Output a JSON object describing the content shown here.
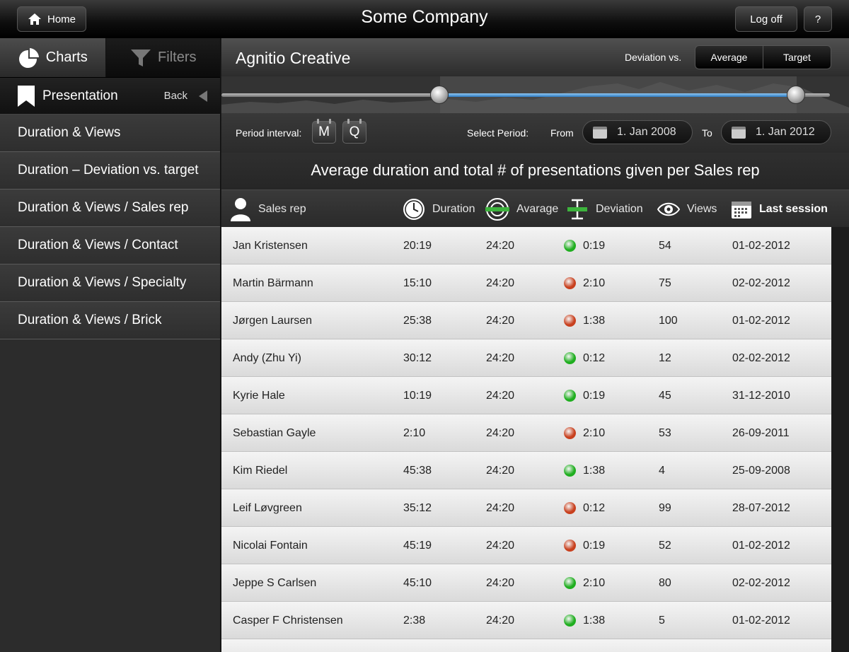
{
  "header": {
    "title": "Some Company",
    "home_label": "Home",
    "logoff_label": "Log off",
    "help_label": "?"
  },
  "sidebar": {
    "tabs": [
      {
        "label": "Charts"
      },
      {
        "label": "Filters"
      }
    ],
    "presentation_label": "Presentation",
    "back_label": "Back",
    "items": [
      {
        "label": "Duration & Views"
      },
      {
        "label": "Duration – Deviation vs. target"
      },
      {
        "label": "Duration & Views / Sales rep"
      },
      {
        "label": "Duration & Views / Contact"
      },
      {
        "label": "Duration & Views / Specialty"
      },
      {
        "label": "Duration & Views / Brick"
      }
    ]
  },
  "main": {
    "title": "Agnitio Creative",
    "deviation_label": "Deviation vs.",
    "deviation_options": [
      "Average",
      "Target"
    ],
    "period_interval_label": "Period interval:",
    "interval_options": [
      "M",
      "Q"
    ],
    "select_period_label": "Select Period:",
    "from_label": "From",
    "from_value": "1. Jan 2008",
    "to_label": "To",
    "to_value": "1. Jan 2012",
    "subtitle": "Average duration and total # of presentations given per Sales rep",
    "columns": {
      "sales_rep": "Sales rep",
      "duration": "Duration",
      "average": "Avarage",
      "deviation": "Deviation",
      "views": "Views",
      "last_session": "Last session"
    },
    "status_colors": {
      "good": "#1fae1f",
      "bad": "#c8401e"
    },
    "rows": [
      {
        "name": "Jan Kristensen",
        "duration": "20:19",
        "average": "24:20",
        "status": "good",
        "deviation": "0:19",
        "views": "54",
        "last": "01-02-2012"
      },
      {
        "name": "Martin Bärmann",
        "duration": "15:10",
        "average": "24:20",
        "status": "bad",
        "deviation": "2:10",
        "views": "75",
        "last": "02-02-2012"
      },
      {
        "name": "Jørgen Laursen",
        "duration": "25:38",
        "average": "24:20",
        "status": "bad",
        "deviation": "1:38",
        "views": "100",
        "last": "01-02-2012"
      },
      {
        "name": "Andy (Zhu Yi)",
        "duration": "30:12",
        "average": "24:20",
        "status": "good",
        "deviation": "0:12",
        "views": "12",
        "last": "02-02-2012"
      },
      {
        "name": "Kyrie Hale",
        "duration": "10:19",
        "average": "24:20",
        "status": "good",
        "deviation": "0:19",
        "views": "45",
        "last": "31-12-2010"
      },
      {
        "name": "Sebastian Gayle",
        "duration": "2:10",
        "average": "24:20",
        "status": "bad",
        "deviation": "2:10",
        "views": "53",
        "last": "26-09-2011"
      },
      {
        "name": "Kim Riedel",
        "duration": "45:38",
        "average": "24:20",
        "status": "good",
        "deviation": "1:38",
        "views": "4",
        "last": "25-09-2008"
      },
      {
        "name": "Leif Løvgreen",
        "duration": "35:12",
        "average": "24:20",
        "status": "bad",
        "deviation": "0:12",
        "views": "99",
        "last": "28-07-2012"
      },
      {
        "name": "Nicolai Fontain",
        "duration": "45:19",
        "average": "24:20",
        "status": "bad",
        "deviation": "0:19",
        "views": "52",
        "last": "01-02-2012"
      },
      {
        "name": "Jeppe S Carlsen",
        "duration": "45:10",
        "average": "24:20",
        "status": "good",
        "deviation": "2:10",
        "views": "80",
        "last": "02-02-2012"
      },
      {
        "name": "Casper F Christensen",
        "duration": "2:38",
        "average": "24:20",
        "status": "good",
        "deviation": "1:38",
        "views": "5",
        "last": "01-02-2012"
      },
      {
        "name": "",
        "duration": "",
        "average": "",
        "status": "",
        "deviation": "",
        "views": "",
        "last": ""
      }
    ]
  }
}
